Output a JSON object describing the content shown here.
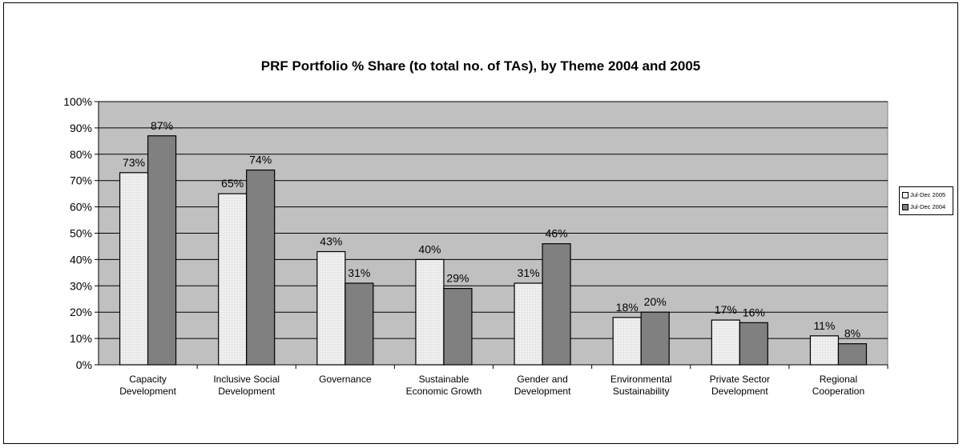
{
  "chart_data": {
    "type": "bar",
    "title": "PRF Portfolio % Share (to total no. of TAs), by Theme 2004 and 2005",
    "xlabel": "",
    "ylabel": "",
    "ylim": [
      0,
      100
    ],
    "yticks": [
      "0%",
      "10%",
      "20%",
      "30%",
      "40%",
      "50%",
      "60%",
      "70%",
      "80%",
      "90%",
      "100%"
    ],
    "categories": [
      [
        "Capacity",
        "Development"
      ],
      [
        "Inclusive Social",
        "Development"
      ],
      [
        "Governance"
      ],
      [
        "Sustainable",
        "Economic Growth"
      ],
      [
        "Gender and",
        "Development"
      ],
      [
        "Environmental",
        "Sustainability"
      ],
      [
        "Private Sector",
        "Development"
      ],
      [
        "Regional",
        "Cooperation"
      ]
    ],
    "series": [
      {
        "name": "Jul-Dec 2005",
        "values": [
          73,
          65,
          43,
          40,
          31,
          18,
          17,
          11
        ],
        "labels": [
          "73%",
          "65%",
          "43%",
          "40%",
          "31%",
          "18%",
          "17%",
          "11%"
        ],
        "color": "#f2f2f2"
      },
      {
        "name": "Jul-Dec 2004",
        "values": [
          87,
          74,
          31,
          29,
          46,
          20,
          16,
          8
        ],
        "labels": [
          "87%",
          "74%",
          "31%",
          "29%",
          "46%",
          "20%",
          "16%",
          "8%"
        ],
        "color": "#808080"
      }
    ],
    "grid": true,
    "legend_position": "right",
    "plot_background": "#c0c0c0"
  }
}
